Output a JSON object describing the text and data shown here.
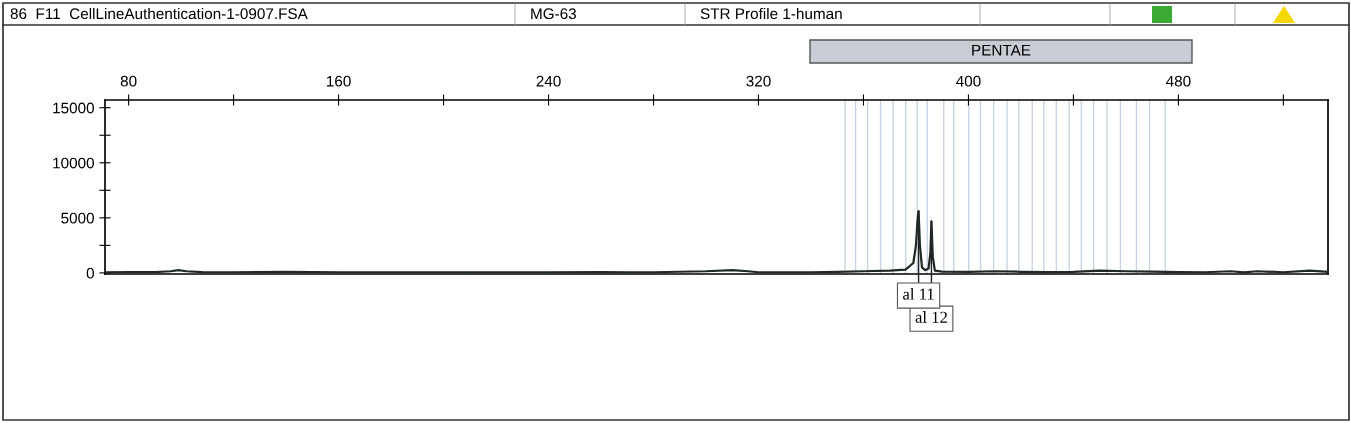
{
  "chart_data": {
    "type": "line",
    "annotations": [
      "86  F11  CellLineAuthentication-1-0907.FSA",
      "MG-63",
      "STR Profile 1-human",
      "PENTAE",
      {
        "text": "al 11",
        "x": 381,
        "y": 5600
      },
      {
        "text": "al 12",
        "x": 385.9,
        "y": 4680
      }
    ],
    "series": [
      {
        "color": "#1e2a22",
        "x": [
          71,
          80,
          90,
          96,
          99,
          102,
          108,
          120,
          140,
          160,
          175,
          190,
          210,
          225,
          240,
          260,
          270,
          280,
          300,
          310,
          316,
          320,
          330,
          340,
          350,
          360,
          370,
          376,
          379,
          380,
          380.6,
          381,
          381.5,
          382.3,
          383.5,
          384.8,
          385.5,
          385.9,
          386.4,
          387.2,
          390,
          400,
          410,
          420,
          430,
          440,
          450,
          460,
          470,
          480,
          490,
          500,
          505,
          510,
          520,
          530,
          537
        ],
        "values": [
          60,
          80,
          70,
          150,
          250,
          150,
          70,
          60,
          100,
          60,
          50,
          60,
          50,
          60,
          50,
          80,
          50,
          60,
          150,
          250,
          150,
          60,
          50,
          60,
          100,
          150,
          200,
          300,
          900,
          2500,
          4800,
          5600,
          2500,
          500,
          250,
          400,
          1800,
          4680,
          1500,
          200,
          120,
          100,
          150,
          100,
          80,
          100,
          200,
          150,
          120,
          80,
          60,
          150,
          40,
          150,
          60,
          200,
          100
        ]
      }
    ],
    "xlim": [
      71,
      537
    ],
    "xticks": [
      80,
      {
        "value": 120,
        "label": null
      },
      160,
      {
        "value": 200,
        "label": null
      },
      240,
      {
        "value": 280,
        "label": null
      },
      320,
      {
        "value": 360,
        "label": null
      },
      400,
      {
        "value": 440,
        "label": null
      },
      480,
      {
        "value": 520,
        "label": null
      }
    ],
    "ylim": [
      -100,
      15700
    ],
    "yticks": [
      0,
      {
        "value": 2500,
        "label": null
      },
      5000,
      {
        "value": 7500,
        "label": null
      },
      10000,
      {
        "value": 12500,
        "label": null
      },
      15000
    ],
    "ref_lines": [
      {
        "axis": "x",
        "value": 353,
        "color": "#c8d4e4"
      },
      {
        "axis": "x",
        "value": 357,
        "color": "#c8d4e4"
      },
      {
        "axis": "x",
        "value": 361.6,
        "color": "#c8d4e4"
      },
      {
        "axis": "x",
        "value": 366.5,
        "color": "#c8d4e4"
      },
      {
        "axis": "x",
        "value": 371.3,
        "color": "#c8d4e4"
      },
      {
        "axis": "x",
        "value": 376.1,
        "color": "#c8d4e4"
      },
      {
        "axis": "x",
        "value": 380.5,
        "color": "#c8d4e4"
      },
      {
        "axis": "x",
        "value": 384.3,
        "color": "#c8d4e4"
      },
      {
        "axis": "x",
        "value": 390.6,
        "color": "#c8d4e4"
      },
      {
        "axis": "x",
        "value": 394.4,
        "color": "#c8d4e4"
      },
      {
        "axis": "x",
        "value": 400.1,
        "color": "#c8d4e4"
      },
      {
        "axis": "x",
        "value": 404.6,
        "color": "#c8d4e4"
      },
      {
        "axis": "x",
        "value": 409.6,
        "color": "#c8d4e4"
      },
      {
        "axis": "x",
        "value": 414.7,
        "color": "#c8d4e4"
      },
      {
        "axis": "x",
        "value": 419.2,
        "color": "#c8d4e4"
      },
      {
        "axis": "x",
        "value": 424.3,
        "color": "#c8d4e4"
      },
      {
        "axis": "x",
        "value": 428.7,
        "color": "#c8d4e4"
      },
      {
        "axis": "x",
        "value": 433.5,
        "color": "#c8d4e4"
      },
      {
        "axis": "x",
        "value": 438.4,
        "color": "#c8d4e4"
      },
      {
        "axis": "x",
        "value": 443,
        "color": "#c8d4e4"
      },
      {
        "axis": "x",
        "value": 447.7,
        "color": "#c8d4e4"
      },
      {
        "axis": "x",
        "value": 452.8,
        "color": "#c8d4e4"
      },
      {
        "axis": "x",
        "value": 457.9,
        "color": "#c8d4e4"
      },
      {
        "axis": "x",
        "value": 464,
        "color": "#c8d4e4"
      },
      {
        "axis": "x",
        "value": 469,
        "color": "#c8d4e4"
      },
      {
        "axis": "x",
        "value": 475,
        "color": "#c8d4e4"
      }
    ],
    "grid": false,
    "legend": false,
    "marker": "none",
    "line_style": "solid"
  }
}
